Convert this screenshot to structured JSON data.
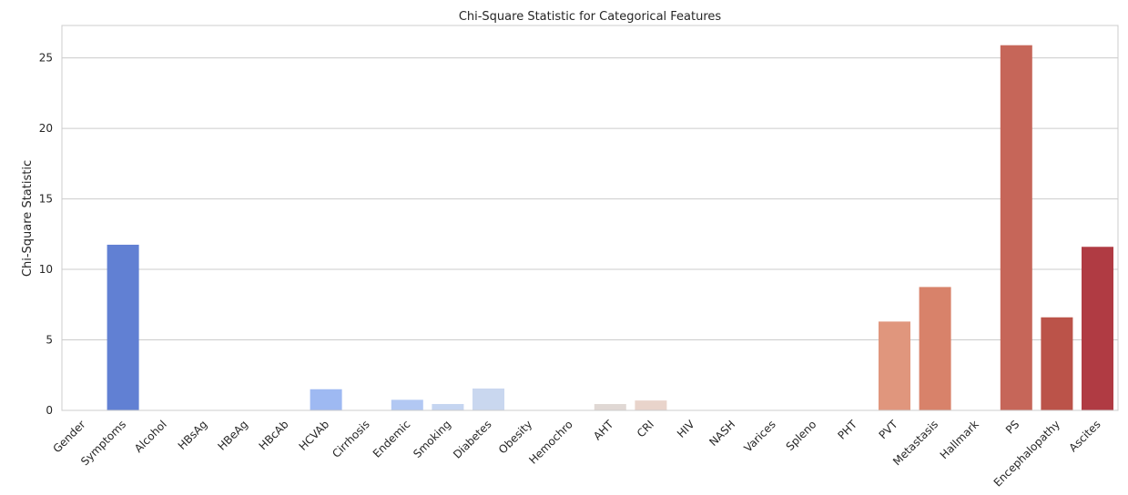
{
  "chart_data": {
    "type": "bar",
    "title": "Chi-Square Statistic for Categorical Features",
    "xlabel": "",
    "ylabel": "Chi-Square Statistic",
    "ylim": [
      0,
      27.3
    ],
    "yticks": [
      0,
      5,
      10,
      15,
      20,
      25
    ],
    "grid": "horizontal",
    "categories": [
      "Gender",
      "Symptoms",
      "Alcohol",
      "HBsAg",
      "HBeAg",
      "HBcAb",
      "HCVAb",
      "Cirrhosis",
      "Endemic",
      "Smoking",
      "Diabetes",
      "Obesity",
      "Hemochro",
      "AHT",
      "CRI",
      "HIV",
      "NASH",
      "Varices",
      "Spleno",
      "PHT",
      "PVT",
      "Metastasis",
      "Hallmark",
      "PS",
      "Encephalopathy",
      "Ascites"
    ],
    "values": [
      0,
      11.75,
      0,
      0,
      0,
      0,
      1.5,
      0,
      0.75,
      0.45,
      1.55,
      0,
      0,
      0.45,
      0.7,
      0,
      0,
      0,
      0,
      0,
      6.3,
      8.75,
      0,
      25.9,
      6.6,
      11.6
    ],
    "colors": [
      "#3b4cc0",
      "#6180d3",
      "#7a9ae4",
      "#90b1f0",
      "#a5c2f6",
      "#b5cdf8",
      "#9eb9f2",
      "#b3cbf7",
      "#b2c8f3",
      "#c5d5f1",
      "#c9d7ef",
      "#d9dce2",
      "#e2dad6",
      "#e0d8d4",
      "#e9d4cb",
      "#efc7b4",
      "#f1b9a0",
      "#eea98c",
      "#e99a7a",
      "#e48b6b",
      "#e0967d",
      "#d8826a",
      "#cf6f5d",
      "#c66659",
      "#bb5349",
      "#b03b43"
    ]
  }
}
